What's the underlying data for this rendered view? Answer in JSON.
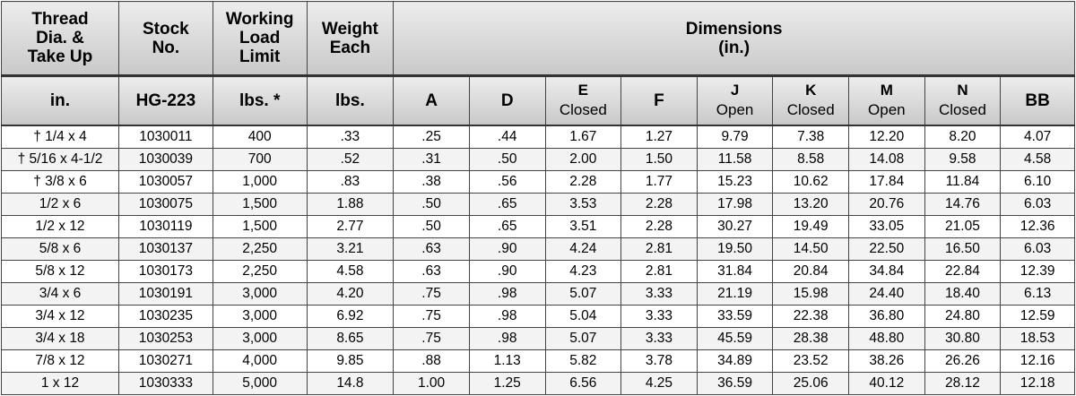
{
  "header": {
    "thread": "Thread\nDia. &\nTake Up",
    "stock": "Stock\nNo.",
    "wll": "Working\nLoad\nLimit",
    "weight": "Weight\nEach",
    "dimensions": "Dimensions\n(in.)"
  },
  "units": {
    "thread": "in.",
    "stock": "HG-223",
    "wll": "lbs. *",
    "weight": "lbs.",
    "A": "A",
    "D": "D",
    "E": [
      "E",
      "Closed"
    ],
    "F": "F",
    "J": [
      "J",
      "Open"
    ],
    "K": [
      "K",
      "Closed"
    ],
    "M": [
      "M",
      "Open"
    ],
    "N": [
      "N",
      "Closed"
    ],
    "BB": "BB"
  },
  "rows": [
    [
      "† 1/4 x 4",
      "1030011",
      "400",
      ".33",
      ".25",
      ".44",
      "1.67",
      "1.27",
      "9.79",
      "7.38",
      "12.20",
      "8.20",
      "4.07"
    ],
    [
      "† 5/16 x 4-1/2",
      "1030039",
      "700",
      ".52",
      ".31",
      ".50",
      "2.00",
      "1.50",
      "11.58",
      "8.58",
      "14.08",
      "9.58",
      "4.58"
    ],
    [
      "† 3/8 x 6",
      "1030057",
      "1,000",
      ".83",
      ".38",
      ".56",
      "2.28",
      "1.77",
      "15.23",
      "10.62",
      "17.84",
      "11.84",
      "6.10"
    ],
    [
      "1/2 x 6",
      "1030075",
      "1,500",
      "1.88",
      ".50",
      ".65",
      "3.53",
      "2.28",
      "17.98",
      "13.20",
      "20.76",
      "14.76",
      "6.03"
    ],
    [
      "1/2 x 12",
      "1030119",
      "1,500",
      "2.77",
      ".50",
      ".65",
      "3.51",
      "2.28",
      "30.27",
      "19.49",
      "33.05",
      "21.05",
      "12.36"
    ],
    [
      "5/8 x 6",
      "1030137",
      "2,250",
      "3.21",
      ".63",
      ".90",
      "4.24",
      "2.81",
      "19.50",
      "14.50",
      "22.50",
      "16.50",
      "6.03"
    ],
    [
      "5/8 x 12",
      "1030173",
      "2,250",
      "4.58",
      ".63",
      ".90",
      "4.23",
      "2.81",
      "31.84",
      "20.84",
      "34.84",
      "22.84",
      "12.39"
    ],
    [
      "3/4 x 6",
      "1030191",
      "3,000",
      "4.20",
      ".75",
      ".98",
      "5.07",
      "3.33",
      "21.19",
      "15.98",
      "24.40",
      "18.40",
      "6.13"
    ],
    [
      "3/4 x 12",
      "1030235",
      "3,000",
      "6.92",
      ".75",
      ".98",
      "5.04",
      "3.33",
      "33.59",
      "22.38",
      "36.80",
      "24.80",
      "12.59"
    ],
    [
      "3/4 x 18",
      "1030253",
      "3,000",
      "8.65",
      ".75",
      ".98",
      "5.07",
      "3.33",
      "45.59",
      "28.38",
      "48.80",
      "30.80",
      "18.53"
    ],
    [
      "7/8 x 12",
      "1030271",
      "4,000",
      "9.85",
      ".88",
      "1.13",
      "5.82",
      "3.78",
      "34.89",
      "23.52",
      "38.26",
      "26.26",
      "12.16"
    ],
    [
      "1 x 12",
      "1030333",
      "5,000",
      "14.8",
      "1.00",
      "1.25",
      "6.56",
      "4.25",
      "36.59",
      "25.06",
      "40.12",
      "28.12",
      "12.18"
    ]
  ]
}
